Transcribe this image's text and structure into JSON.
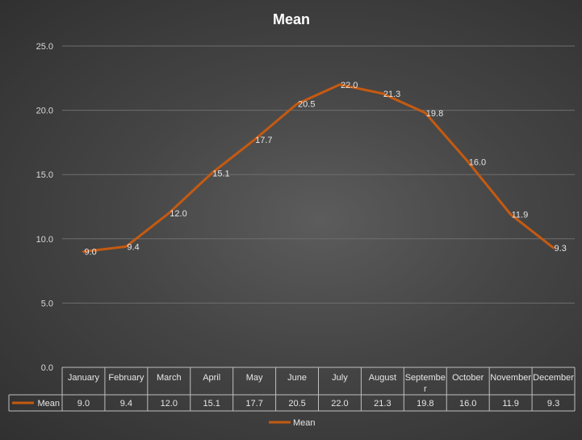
{
  "chart_data": {
    "type": "line",
    "title": "Mean",
    "categories": [
      "January",
      "February",
      "March",
      "April",
      "May",
      "June",
      "July",
      "August",
      "September",
      "October",
      "November",
      "December"
    ],
    "category_display": [
      [
        "January"
      ],
      [
        "February"
      ],
      [
        "March"
      ],
      [
        "April"
      ],
      [
        "May"
      ],
      [
        "June"
      ],
      [
        "July"
      ],
      [
        "August"
      ],
      [
        "Septembe",
        "r"
      ],
      [
        "October"
      ],
      [
        "November"
      ],
      [
        "December"
      ]
    ],
    "series": [
      {
        "name": "Mean",
        "values": [
          9.0,
          9.4,
          12.0,
          15.1,
          17.7,
          20.5,
          22.0,
          21.3,
          19.8,
          16.0,
          11.9,
          9.3
        ],
        "color": "#c55a11"
      }
    ],
    "ylim": [
      0,
      25
    ],
    "yticks": [
      "0.0",
      "5.0",
      "10.0",
      "15.0",
      "20.0",
      "25.0"
    ],
    "data_labels": [
      "9.0",
      "9.4",
      "12.0",
      "15.1",
      "17.7",
      "20.5",
      "22.0",
      "21.3",
      "19.8",
      "16.0",
      "11.9",
      "9.3"
    ],
    "grid": true,
    "data_table": true,
    "legend": {
      "position": "bottom",
      "entries": [
        "Mean"
      ]
    }
  },
  "colors": {
    "line": "#c55a11",
    "grid": "#6e6e6e",
    "table_border": "#bfbfbf",
    "text": "#d9d9d9"
  }
}
